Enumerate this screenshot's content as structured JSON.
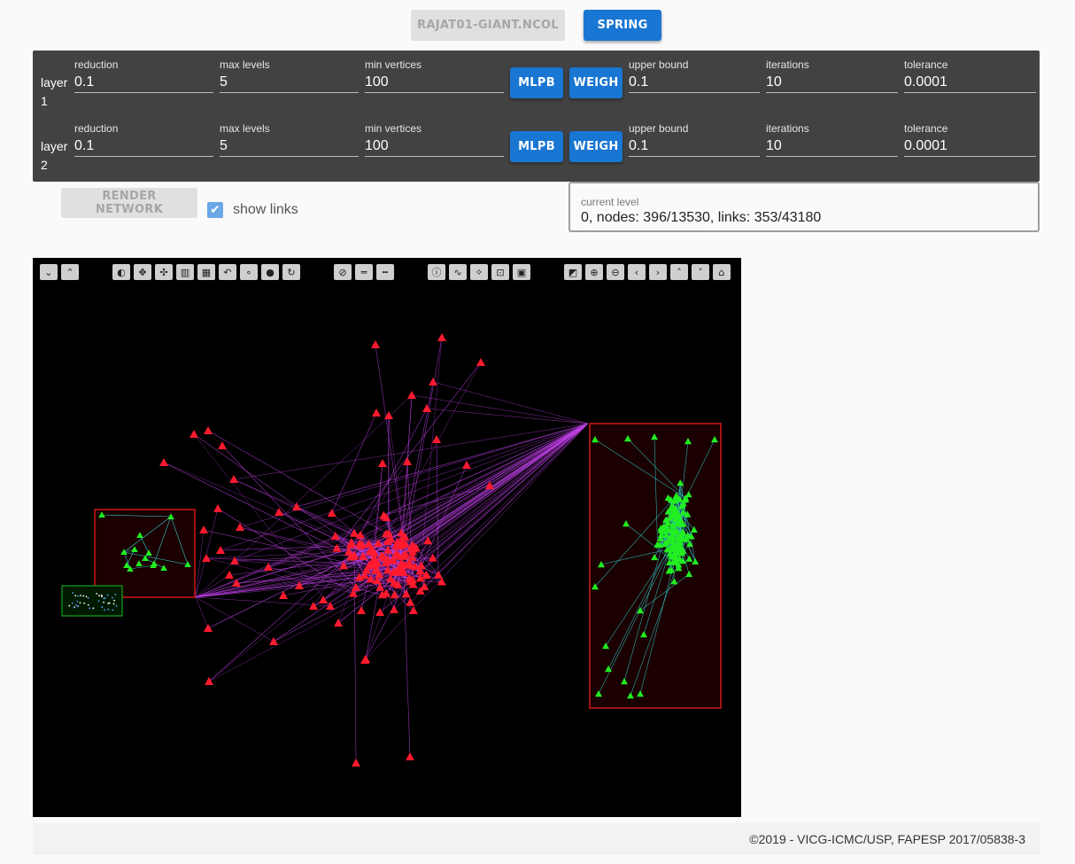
{
  "header": {
    "file_button": "RAJAT01-GIANT.NCOL",
    "layout_button": "SPRING"
  },
  "layers": [
    {
      "label": "layer 1",
      "reduction_label": "reduction",
      "reduction": "0.1",
      "max_levels_label": "max levels",
      "max_levels": "5",
      "min_vertices_label": "min vertices",
      "min_vertices": "100",
      "mlpb_label": "MLPB",
      "weigh_label": "WEIGH",
      "upper_bound_label": "upper bound",
      "upper_bound": "0.1",
      "iterations_label": "iterations",
      "iterations": "10",
      "tolerance_label": "tolerance",
      "tolerance": "0.0001"
    },
    {
      "label": "layer 2",
      "reduction_label": "reduction",
      "reduction": "0.1",
      "max_levels_label": "max levels",
      "max_levels": "5",
      "min_vertices_label": "min vertices",
      "min_vertices": "100",
      "mlpb_label": "MLPB",
      "weigh_label": "WEIGH",
      "upper_bound_label": "upper bound",
      "upper_bound": "0.1",
      "iterations_label": "iterations",
      "iterations": "10",
      "tolerance_label": "tolerance",
      "tolerance": "0.0001"
    }
  ],
  "controls": {
    "render_button": "RENDER NETWORK",
    "show_links_label": "show links",
    "show_links_checked": true
  },
  "status": {
    "current_level_label": "current level",
    "current_level_value": "0, nodes: 396/13530, links: 353/43180"
  },
  "toolbar": {
    "icons": [
      "collapse-icon",
      "expand-icon",
      "contrast-icon",
      "move-icon",
      "nodes-icon",
      "histogram-icon",
      "histogram-alt-icon",
      "undo-icon",
      "node-size-small-icon",
      "node-size-large-icon",
      "rotate-icon",
      "hide-icon",
      "links-icon",
      "links-dashed-icon",
      "info-icon",
      "path-icon",
      "compass-icon",
      "select-box-icon",
      "select-all-icon",
      "paint-bucket-icon",
      "zoom-in-icon",
      "zoom-out-icon",
      "pan-left-icon",
      "pan-right-icon",
      "pan-up-icon",
      "pan-down-icon",
      "home-icon"
    ]
  },
  "graph_colors": {
    "background": "#000000",
    "red_nodes": "#ff1a2e",
    "green_nodes": "#22ee22",
    "red_links": "#c040e8",
    "green_links": "#30c8c8",
    "selection_red": "#d01818",
    "selection_green": "#1aa01a"
  },
  "footer": {
    "copyright": "©2019 - VICG-ICMC/USP, FAPESP 2017/05838-3"
  }
}
